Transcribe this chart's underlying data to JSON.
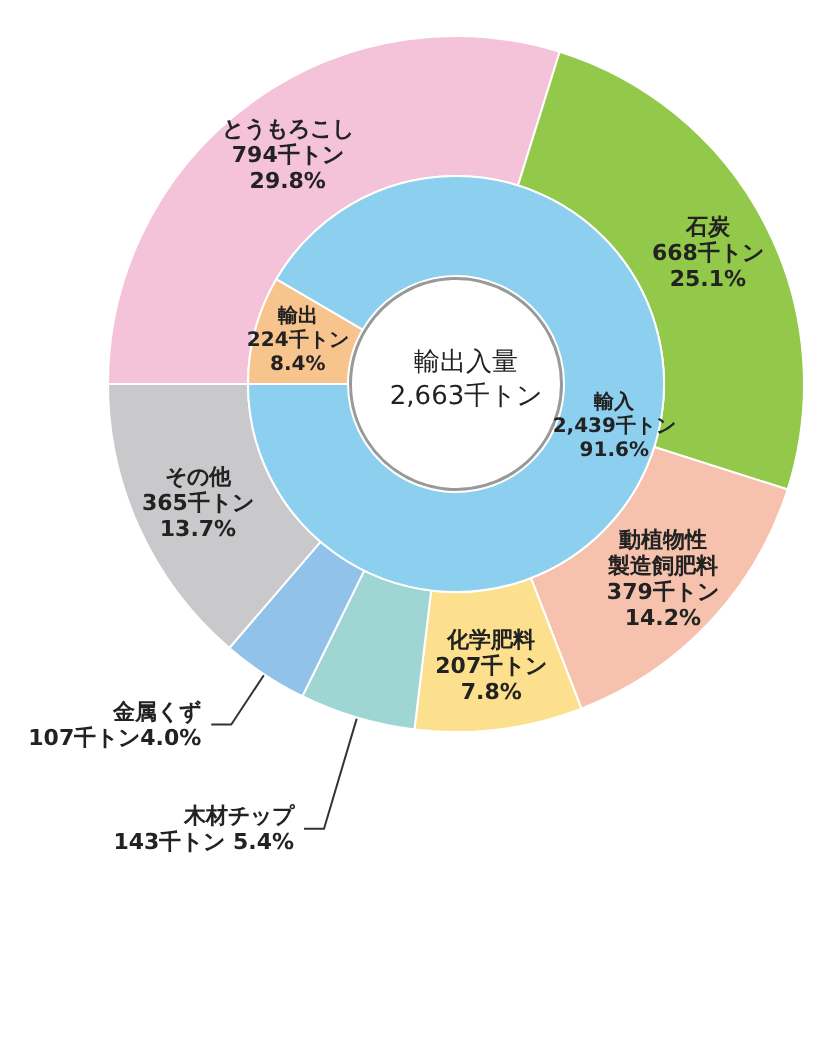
{
  "chart_data": [
    {
      "type": "donut",
      "categories": [
        "とうもろこし",
        "石炭",
        "動植物性製造飼肥料",
        "化学肥料",
        "木材チップ",
        "金属くず",
        "その他"
      ],
      "values": [
        794,
        668,
        379,
        207,
        143,
        107,
        365
      ],
      "colors": [
        "#f4c3d9",
        "#93c94a",
        "#f6c2ad",
        "#fde08e",
        "#9fd5d3",
        "#90c2ea",
        "#c9c9cb"
      ],
      "value_labels": [
        "794千トン\n29.8%",
        "668千トン\n25.1%",
        "379千トン\n14.2%",
        "207千トン\n7.8%",
        "143千トン 5.4%",
        "107千トン4.0%",
        "365千トン\n13.7%"
      ]
    },
    {
      "type": "donut",
      "title": "輸出入量",
      "subtitle": "2,663千トン",
      "categories": [
        "輸出",
        "輸入"
      ],
      "values": [
        224,
        2439
      ],
      "colors": [
        "#f8c48e",
        "#8ccfee"
      ],
      "value_labels": [
        "224千トン\n8.4%",
        "2,439千トン\n91.6%"
      ]
    }
  ]
}
